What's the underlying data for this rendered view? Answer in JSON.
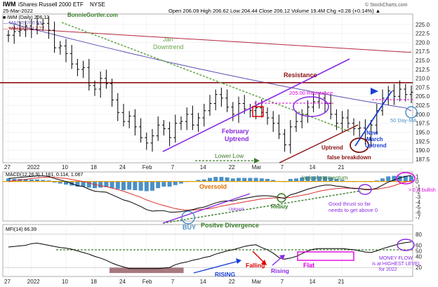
{
  "header": {
    "symbol": "IWM",
    "name": "iShares Russell 2000 ETF",
    "exchange": "NYSE",
    "copyright": "© StockCharts.com",
    "date": "25-Mar-2022",
    "ohlc_text": "Open 206.09  High 206.62  Low 204.44  Close 206.12  Volume 19.4M  Chg +0.28 (+0.14%) ▲",
    "legend_price": "■ IWM (Daily) 206.12",
    "legend_ma50": "— MA(50) 200.93",
    "legend_ma200": "— MA(200) 217.27"
  },
  "colors": {
    "price": "#000000",
    "ma50": "#5a50b4",
    "ma200": "#b4283c",
    "resistance": "#8b1010",
    "uptrend": "#8a2be2",
    "downtrend": "#6aa84f",
    "macd_line": "#000000",
    "signal_line": "#d9302c",
    "histogram": "#4a90c8",
    "mfi": "#000000",
    "annotation_green": "#3a7d2a",
    "annotation_purple": "#8a2be2",
    "annotation_magenta": "#e000e0",
    "annotation_blue": "#1a3fd6",
    "annotation_red": "#d00000"
  },
  "chart_data": [
    {
      "type": "line",
      "panel": "price",
      "title": "",
      "y_axis_ticks": [
        187.5,
        190.0,
        192.5,
        195.0,
        197.5,
        200.0,
        202.5,
        205.0,
        207.5,
        210.0,
        212.5,
        215.0,
        217.5,
        220.0,
        222.5,
        225.0
      ],
      "ylim": [
        186.5,
        227.5
      ],
      "x_tick_labels": [
        "27",
        "2022",
        "10",
        "18",
        "24",
        "Feb",
        "7",
        "14",
        "22",
        "Mar",
        "7",
        "14",
        "21"
      ],
      "series": [
        {
          "name": "IWM (Daily)",
          "kind": "ohlc",
          "close": [
            222.0,
            223.0,
            223.4,
            224.6,
            223.6,
            225.1,
            225.3,
            223.4,
            218.5,
            219.0,
            216.9,
            214.0,
            212.5,
            213.0,
            208.0,
            207.0,
            210.0,
            208.5,
            204.0,
            200.5,
            198.0,
            199.5,
            196.5,
            193.5,
            192.0,
            194.0,
            197.0,
            196.0,
            193.5,
            197.5,
            198.0,
            200.0,
            197.0,
            199.0,
            201.0,
            203.0,
            205.5,
            204.5,
            202.0,
            200.0,
            203.0,
            201.5,
            201.0,
            201.8,
            200.5,
            199.0,
            197.5,
            194.5,
            191.5,
            196.5,
            198.0,
            200.0,
            202.0,
            203.5,
            204.5,
            203.0,
            200.0,
            197.5,
            199.0,
            197.5,
            196.0,
            196.2,
            193.0,
            197.0,
            201.0,
            204.5,
            206.5,
            205.0,
            207.0,
            205.5,
            206.12
          ]
        },
        {
          "name": "MA(50)",
          "value": 200.93
        },
        {
          "name": "MA(200)",
          "value": 217.27
        }
      ],
      "resistance_level": 208.8,
      "annotations": [
        "BonnieGortler.com",
        "Jan",
        "Downtrend",
        "Resistance",
        "205.00 Resistance",
        "February",
        "Uptrend",
        "Lower Low",
        "Uptrend",
        "false breakdown",
        "New",
        "March",
        "Uptrend",
        "50 Day-MA"
      ]
    },
    {
      "type": "line",
      "panel": "macd",
      "label": "MACD(12,26,9) 1.181, 0.114, 1.067",
      "y_axis_ticks": [
        1,
        0,
        -1,
        -2,
        -3,
        -4,
        -5,
        -6,
        -7
      ],
      "ylim": [
        -7.6,
        1.6
      ],
      "series": [
        {
          "name": "MACD",
          "values": [
            0.6,
            0.7,
            0.8,
            0.9,
            1.0,
            1.1,
            1.1,
            1.0,
            0.6,
            0.3,
            0.0,
            -0.4,
            -0.8,
            -1.0,
            -1.5,
            -1.9,
            -2.0,
            -2.1,
            -2.6,
            -3.1,
            -3.6,
            -3.9,
            -4.4,
            -4.9,
            -5.5,
            -5.8,
            -5.7,
            -5.7,
            -6.0,
            -6.0,
            -5.9,
            -5.7,
            -5.5,
            -5.2,
            -5.0,
            -4.6,
            -4.2,
            -3.9,
            -3.8,
            -3.8,
            -3.5,
            -3.3,
            -3.1,
            -2.9,
            -2.8,
            -2.8,
            -2.9,
            -3.1,
            -3.3,
            -2.6,
            -2.3,
            -1.9,
            -1.5,
            -1.2,
            -0.9,
            -0.7,
            -0.7,
            -0.9,
            -1.0,
            -1.2,
            -1.4,
            -1.4,
            -1.6,
            -1.6,
            -1.3,
            -0.7,
            -0.1,
            0.3,
            0.7,
            1.0,
            1.181
          ]
        },
        {
          "name": "Signal",
          "values": [
            0.0,
            0.2,
            0.3,
            0.4,
            0.6,
            0.7,
            0.8,
            0.8,
            0.8,
            0.7,
            0.6,
            0.4,
            0.2,
            0.0,
            -0.3,
            -0.6,
            -0.8,
            -1.0,
            -1.3,
            -1.6,
            -1.9,
            -2.3,
            -2.7,
            -3.1,
            -3.6,
            -4.0,
            -4.4,
            -4.7,
            -5.0,
            -5.3,
            -5.5,
            -5.6,
            -5.6,
            -5.5,
            -5.4,
            -5.3,
            -5.1,
            -4.8,
            -4.6,
            -4.4,
            -4.2,
            -4.0,
            -3.8,
            -3.6,
            -3.4,
            -3.3,
            -3.2,
            -3.2,
            -3.2,
            -3.1,
            -2.9,
            -2.7,
            -2.5,
            -2.2,
            -1.9,
            -1.7,
            -1.5,
            -1.4,
            -1.3,
            -1.3,
            -1.3,
            -1.4,
            -1.5,
            -1.5,
            -1.5,
            -1.3,
            -1.1,
            -0.8,
            -0.4,
            -0.1,
            0.114
          ]
        },
        {
          "name": "Histogram",
          "values": [
            0.6,
            0.5,
            0.5,
            0.5,
            0.4,
            0.4,
            0.3,
            0.2,
            -0.2,
            -0.4,
            -0.6,
            -0.8,
            -1.0,
            -1.0,
            -1.2,
            -1.3,
            -1.2,
            -1.1,
            -1.3,
            -1.5,
            -1.7,
            -1.6,
            -1.7,
            -1.8,
            -1.9,
            -1.8,
            -1.3,
            -1.0,
            -1.0,
            -0.7,
            -0.4,
            -0.1,
            0.1,
            0.3,
            0.4,
            0.7,
            0.9,
            0.9,
            0.8,
            0.6,
            0.7,
            0.7,
            0.7,
            0.7,
            0.6,
            0.5,
            0.3,
            0.1,
            -0.1,
            0.5,
            0.6,
            0.8,
            1.0,
            1.0,
            1.0,
            1.0,
            0.8,
            0.5,
            0.3,
            0.1,
            -0.1,
            0.0,
            -0.1,
            -0.1,
            0.2,
            0.6,
            1.0,
            1.1,
            1.1,
            1.1,
            1.067
          ]
        }
      ],
      "annotations": [
        "Oversold",
        "lack of momentum",
        "> 0 is bullish",
        "Rebuy",
        "Good thrust so far",
        "needs to get above 0",
        "BUY",
        "Positve Divergence",
        "Uptrend"
      ]
    },
    {
      "type": "line",
      "panel": "mfi",
      "label": "MFI(14) 66.39",
      "y_axis_ticks": [
        80,
        60,
        50,
        40,
        20
      ],
      "ylim": [
        5,
        95
      ],
      "series": [
        {
          "name": "MFI(14)",
          "values": [
            57,
            58,
            59,
            60,
            63,
            64,
            62,
            60,
            58,
            56,
            55,
            53,
            50,
            47,
            44,
            40,
            37,
            33,
            28,
            24,
            21,
            18,
            18,
            18,
            18,
            18,
            18,
            19,
            20,
            25,
            28,
            30,
            33,
            35,
            38,
            40,
            44,
            47,
            50,
            52,
            55,
            58,
            60,
            61,
            56,
            52,
            46,
            38,
            35,
            37,
            40,
            45,
            50,
            53,
            54,
            54,
            54,
            54,
            54,
            53,
            52,
            50,
            48,
            47,
            50,
            54,
            57,
            60,
            63,
            65,
            66.39
          ]
        }
      ],
      "annotations": [
        "RISING",
        "Falling",
        "Rising",
        "Flat",
        "MONEY FLOW",
        "is at HIGHEST LEVEL",
        "for 2022"
      ]
    }
  ]
}
